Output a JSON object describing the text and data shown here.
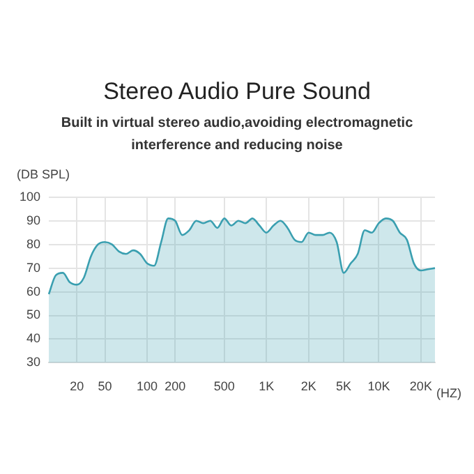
{
  "chart_data": {
    "type": "area",
    "title": "Stereo Audio Pure Sound",
    "subtitle": "Built in virtual stereo audio,avoiding electromagnetic interference and reducing noise",
    "ylabel": "(DB SPL)",
    "xlabel": "(HZ)",
    "categories": [
      null,
      null,
      null,
      null,
      "20",
      null,
      null,
      null,
      "50",
      null,
      null,
      null,
      null,
      null,
      "100",
      null,
      null,
      null,
      "200",
      null,
      null,
      null,
      null,
      null,
      null,
      "500",
      null,
      null,
      null,
      null,
      null,
      "1K",
      null,
      null,
      null,
      null,
      null,
      "2K",
      null,
      null,
      null,
      null,
      "5K",
      null,
      null,
      null,
      null,
      "10K",
      null,
      null,
      null,
      null,
      null,
      "20K",
      null,
      null
    ],
    "series": [
      {
        "color": "#3a9fb0",
        "values": [
          59,
          67,
          68,
          64,
          63,
          66,
          75,
          80,
          81,
          80,
          77,
          76,
          77.5,
          76,
          72,
          71,
          81,
          91,
          90,
          84,
          86,
          90,
          89,
          90,
          87,
          91,
          88,
          90,
          89,
          91,
          88,
          85,
          88,
          90,
          87,
          82,
          81,
          85,
          84,
          84,
          85,
          81,
          68,
          72,
          76,
          86,
          85,
          89,
          91,
          90,
          85,
          82,
          72,
          69,
          69.5,
          70
        ]
      }
    ],
    "ylim": [
      30,
      100
    ],
    "yticks": [
      30,
      40,
      50,
      60,
      70,
      80,
      90,
      100
    ],
    "grid": true,
    "legend": false,
    "marker": "none",
    "line_style": "solid"
  }
}
